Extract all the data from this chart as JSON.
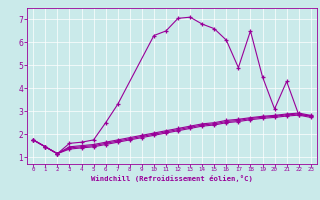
{
  "title": "",
  "xlabel": "Windchill (Refroidissement éolien,°C)",
  "background_color": "#caeaea",
  "line_color": "#990099",
  "xlim": [
    -0.5,
    23.5
  ],
  "ylim": [
    0.7,
    7.5
  ],
  "yticks": [
    1,
    2,
    3,
    4,
    5,
    6,
    7
  ],
  "xticks": [
    0,
    1,
    2,
    3,
    4,
    5,
    6,
    7,
    8,
    9,
    10,
    11,
    12,
    13,
    14,
    15,
    16,
    17,
    18,
    19,
    20,
    21,
    22,
    23
  ],
  "curve1_x": [
    0,
    1,
    2,
    3,
    4,
    5,
    6,
    7,
    10,
    11,
    12,
    13,
    14,
    15,
    16,
    17,
    18,
    19,
    20,
    21,
    22,
    23
  ],
  "curve1_y": [
    1.75,
    1.45,
    1.15,
    1.6,
    1.65,
    1.75,
    2.5,
    3.3,
    6.3,
    6.5,
    7.05,
    7.1,
    6.8,
    6.6,
    6.1,
    4.9,
    6.5,
    4.5,
    3.1,
    4.3,
    2.85,
    2.8
  ],
  "curve2_x": [
    0,
    1,
    2,
    3,
    4,
    5,
    6,
    7,
    8,
    9,
    10,
    11,
    12,
    13,
    14,
    15,
    16,
    17,
    18,
    19,
    20,
    21,
    22,
    23
  ],
  "curve2_y": [
    1.75,
    1.45,
    1.15,
    1.45,
    1.5,
    1.55,
    1.65,
    1.75,
    1.85,
    1.95,
    2.05,
    2.15,
    2.25,
    2.35,
    2.45,
    2.5,
    2.6,
    2.65,
    2.72,
    2.78,
    2.82,
    2.88,
    2.92,
    2.82
  ],
  "curve3_x": [
    0,
    1,
    2,
    3,
    4,
    5,
    6,
    7,
    8,
    9,
    10,
    11,
    12,
    13,
    14,
    15,
    16,
    17,
    18,
    19,
    20,
    21,
    22,
    23
  ],
  "curve3_y": [
    1.75,
    1.45,
    1.15,
    1.4,
    1.45,
    1.5,
    1.6,
    1.7,
    1.8,
    1.9,
    2.0,
    2.1,
    2.2,
    2.3,
    2.4,
    2.45,
    2.55,
    2.6,
    2.68,
    2.74,
    2.78,
    2.84,
    2.88,
    2.78
  ],
  "curve4_x": [
    0,
    1,
    2,
    3,
    4,
    5,
    6,
    7,
    8,
    9,
    10,
    11,
    12,
    13,
    14,
    15,
    16,
    17,
    18,
    19,
    20,
    21,
    22,
    23
  ],
  "curve4_y": [
    1.75,
    1.45,
    1.15,
    1.35,
    1.4,
    1.45,
    1.55,
    1.65,
    1.75,
    1.85,
    1.95,
    2.05,
    2.15,
    2.25,
    2.35,
    2.4,
    2.5,
    2.55,
    2.63,
    2.69,
    2.73,
    2.79,
    2.83,
    2.73
  ]
}
